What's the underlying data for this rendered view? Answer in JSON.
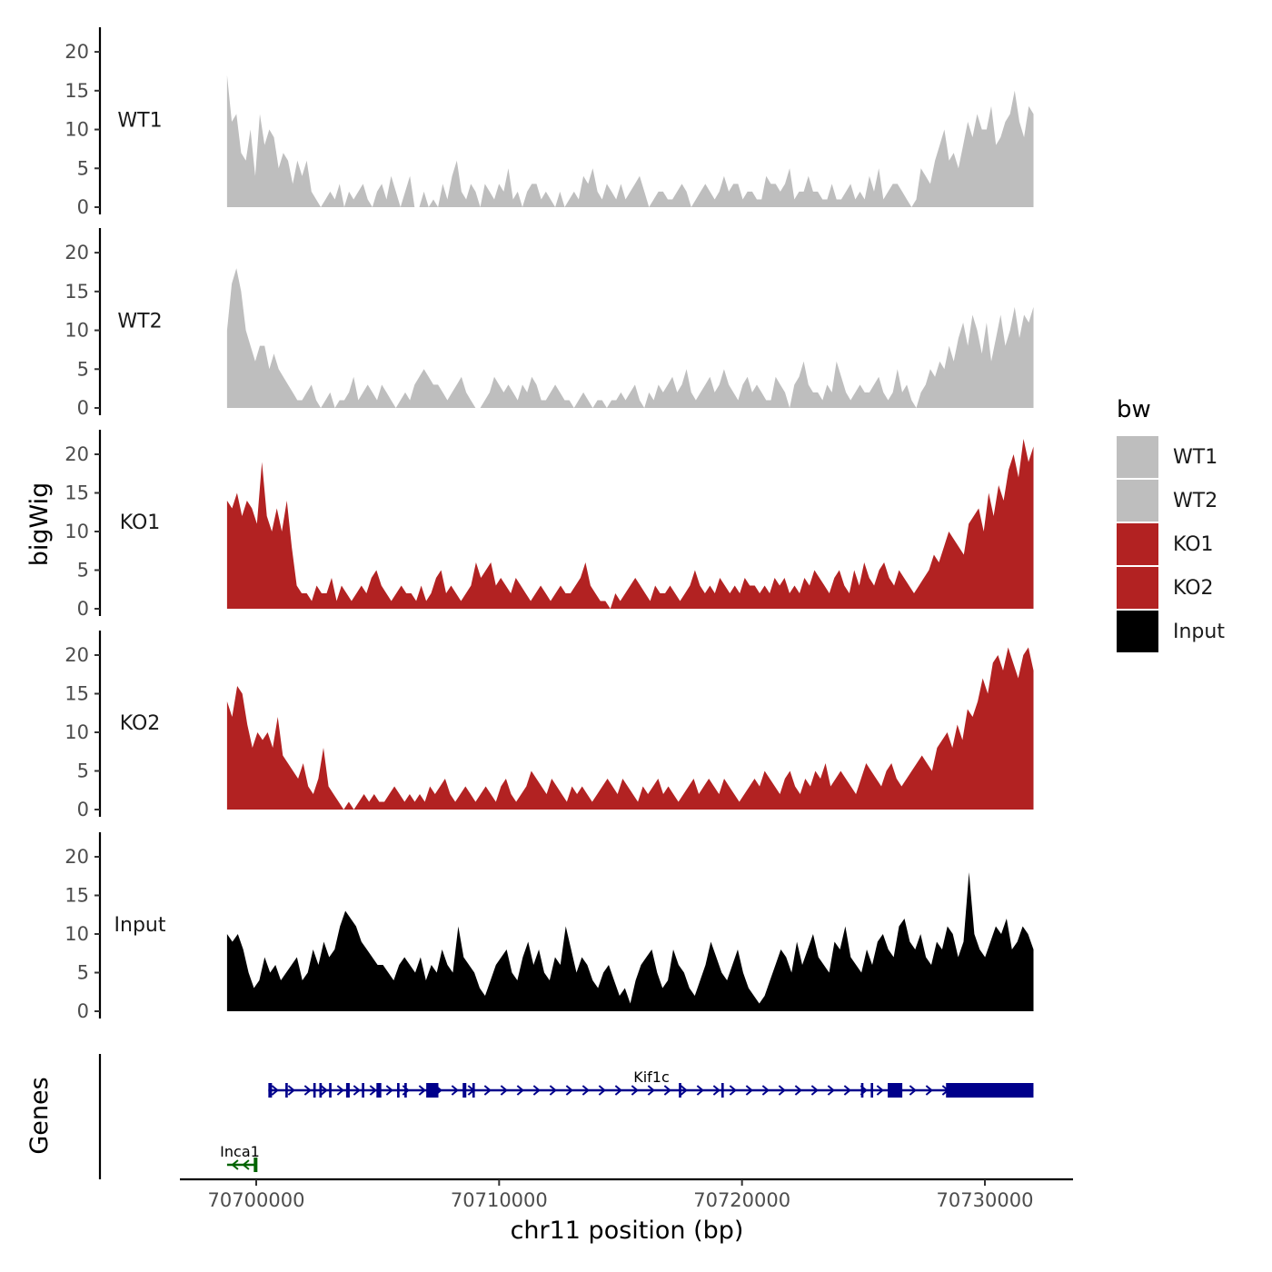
{
  "chart_data": {
    "type": "area",
    "title": "",
    "ylabel": "bigWig",
    "xlabel": "chr11 position (bp)",
    "genes_label": "Genes",
    "ylim": [
      0,
      22
    ],
    "yticks": [
      0,
      5,
      10,
      15,
      20
    ],
    "xlim": [
      70696500,
      70733000
    ],
    "xticks": [
      70700000,
      70710000,
      70720000,
      70730000
    ],
    "xtick_labels": [
      "70700000",
      "70710000",
      "70720000",
      "70730000"
    ],
    "track_x_range": [
      70698800,
      70732000
    ],
    "legend": {
      "title": "bw",
      "position": "right",
      "entries": [
        {
          "label": "WT1",
          "color": "#BEBEBE"
        },
        {
          "label": "WT2",
          "color": "#BEBEBE"
        },
        {
          "label": "KO1",
          "color": "#B22222"
        },
        {
          "label": "KO2",
          "color": "#B22222"
        },
        {
          "label": "Input",
          "color": "#000000"
        }
      ]
    },
    "series": [
      {
        "name": "WT1",
        "color": "#BEBEBE",
        "values": [
          17,
          11,
          12,
          7,
          6,
          10,
          4,
          12,
          8,
          10,
          9,
          5,
          7,
          6,
          3,
          6,
          4,
          6,
          2,
          1,
          0,
          1,
          2,
          1,
          3,
          0,
          2,
          1,
          2,
          3,
          1,
          0,
          2,
          3,
          1,
          4,
          2,
          0,
          2,
          4,
          0,
          0,
          2,
          0,
          1,
          0,
          3,
          1,
          4,
          6,
          2,
          1,
          3,
          2,
          0,
          3,
          2,
          1,
          3,
          2,
          5,
          1,
          2,
          0,
          2,
          3,
          3,
          1,
          2,
          1,
          0,
          2,
          0,
          1,
          2,
          1,
          4,
          3,
          5,
          2,
          1,
          3,
          2,
          1,
          3,
          1,
          2,
          3,
          4,
          2,
          0,
          1,
          2,
          2,
          1,
          1,
          2,
          3,
          2,
          0,
          1,
          2,
          3,
          2,
          1,
          2,
          4,
          2,
          3,
          3,
          1,
          2,
          2,
          1,
          1,
          4,
          3,
          3,
          2,
          3,
          5,
          1,
          2,
          2,
          4,
          2,
          2,
          1,
          1,
          3,
          1,
          1,
          2,
          3,
          1,
          2,
          1,
          4,
          2,
          5,
          1,
          2,
          3,
          3,
          2,
          1,
          0,
          1,
          5,
          4,
          3,
          6,
          8,
          10,
          6,
          7,
          5,
          8,
          11,
          9,
          12,
          10,
          10,
          13,
          8,
          9,
          11,
          12,
          15,
          11,
          9,
          13,
          12
        ]
      },
      {
        "name": "WT2",
        "color": "#BEBEBE",
        "values": [
          10,
          16,
          18,
          15,
          10,
          8,
          6,
          8,
          8,
          5,
          7,
          5,
          4,
          3,
          2,
          1,
          1,
          2,
          3,
          1,
          0,
          1,
          2,
          0,
          1,
          1,
          2,
          4,
          1,
          2,
          3,
          2,
          1,
          3,
          2,
          1,
          0,
          1,
          2,
          1,
          3,
          4,
          5,
          4,
          3,
          3,
          2,
          1,
          2,
          3,
          4,
          2,
          1,
          0,
          0,
          1,
          2,
          4,
          3,
          2,
          3,
          2,
          1,
          3,
          2,
          4,
          3,
          1,
          1,
          2,
          3,
          2,
          1,
          1,
          0,
          1,
          2,
          1,
          0,
          1,
          1,
          0,
          1,
          1,
          2,
          1,
          2,
          3,
          1,
          0,
          2,
          1,
          3,
          2,
          3,
          4,
          2,
          3,
          5,
          2,
          1,
          2,
          3,
          4,
          2,
          3,
          5,
          3,
          2,
          1,
          3,
          4,
          2,
          3,
          2,
          1,
          1,
          4,
          3,
          2,
          0,
          3,
          4,
          6,
          3,
          2,
          2,
          1,
          3,
          2,
          6,
          4,
          2,
          1,
          2,
          3,
          2,
          2,
          3,
          4,
          2,
          1,
          2,
          5,
          2,
          3,
          1,
          0,
          2,
          3,
          5,
          4,
          6,
          5,
          8,
          6,
          9,
          11,
          8,
          12,
          10,
          7,
          11,
          6,
          9,
          12,
          8,
          10,
          13,
          9,
          12,
          11,
          13
        ]
      },
      {
        "name": "KO1",
        "color": "#B22222",
        "values": [
          14,
          13,
          15,
          12,
          14,
          13,
          11,
          19,
          12,
          10,
          13,
          10,
          14,
          8,
          3,
          2,
          2,
          1,
          3,
          2,
          2,
          4,
          1,
          3,
          2,
          1,
          2,
          3,
          2,
          4,
          5,
          3,
          2,
          1,
          2,
          3,
          2,
          2,
          1,
          3,
          1,
          2,
          4,
          5,
          2,
          3,
          2,
          1,
          2,
          3,
          6,
          4,
          5,
          6,
          3,
          4,
          3,
          2,
          4,
          3,
          2,
          1,
          2,
          3,
          2,
          1,
          2,
          3,
          2,
          2,
          3,
          4,
          6,
          3,
          2,
          1,
          1,
          0,
          2,
          1,
          2,
          3,
          4,
          3,
          2,
          1,
          3,
          2,
          2,
          3,
          2,
          1,
          2,
          3,
          5,
          3,
          2,
          3,
          2,
          4,
          3,
          2,
          3,
          2,
          4,
          3,
          3,
          2,
          3,
          2,
          4,
          3,
          4,
          2,
          3,
          2,
          4,
          3,
          5,
          4,
          3,
          2,
          4,
          5,
          3,
          2,
          5,
          3,
          6,
          4,
          3,
          5,
          6,
          4,
          3,
          5,
          4,
          3,
          2,
          3,
          4,
          5,
          7,
          6,
          8,
          10,
          9,
          8,
          7,
          11,
          12,
          13,
          10,
          15,
          12,
          16,
          14,
          18,
          20,
          17,
          22,
          19,
          21
        ]
      },
      {
        "name": "KO2",
        "color": "#B22222",
        "values": [
          14,
          12,
          16,
          15,
          11,
          8,
          10,
          9,
          10,
          8,
          12,
          7,
          6,
          5,
          4,
          6,
          3,
          2,
          4,
          8,
          3,
          2,
          1,
          0,
          1,
          0,
          1,
          2,
          1,
          2,
          1,
          1,
          2,
          3,
          2,
          1,
          2,
          1,
          2,
          1,
          3,
          2,
          3,
          4,
          2,
          1,
          2,
          3,
          2,
          1,
          2,
          3,
          2,
          1,
          3,
          4,
          2,
          1,
          2,
          3,
          5,
          4,
          3,
          2,
          4,
          3,
          2,
          1,
          3,
          2,
          3,
          2,
          1,
          2,
          3,
          4,
          3,
          2,
          4,
          3,
          2,
          1,
          3,
          2,
          3,
          4,
          2,
          3,
          2,
          1,
          2,
          3,
          4,
          2,
          3,
          4,
          3,
          2,
          4,
          3,
          2,
          1,
          2,
          3,
          4,
          3,
          5,
          4,
          3,
          2,
          4,
          5,
          3,
          2,
          4,
          3,
          5,
          4,
          6,
          3,
          4,
          5,
          4,
          3,
          2,
          4,
          6,
          5,
          4,
          3,
          5,
          6,
          4,
          3,
          4,
          5,
          6,
          7,
          6,
          5,
          8,
          9,
          10,
          8,
          11,
          9,
          13,
          12,
          14,
          17,
          15,
          19,
          20,
          18,
          21,
          19,
          17,
          20,
          21,
          18
        ]
      },
      {
        "name": "Input",
        "color": "#000000",
        "values": [
          10,
          9,
          10,
          8,
          5,
          3,
          4,
          7,
          5,
          6,
          4,
          5,
          6,
          7,
          4,
          5,
          8,
          6,
          9,
          7,
          8,
          11,
          13,
          12,
          11,
          9,
          8,
          7,
          6,
          6,
          5,
          4,
          6,
          7,
          6,
          5,
          7,
          4,
          6,
          5,
          8,
          6,
          5,
          11,
          7,
          6,
          5,
          3,
          2,
          4,
          6,
          7,
          8,
          5,
          4,
          7,
          9,
          6,
          8,
          5,
          4,
          7,
          6,
          11,
          8,
          5,
          7,
          6,
          4,
          3,
          5,
          6,
          4,
          2,
          3,
          1,
          4,
          6,
          7,
          8,
          5,
          3,
          4,
          8,
          6,
          5,
          3,
          2,
          4,
          6,
          9,
          7,
          5,
          4,
          6,
          8,
          5,
          3,
          2,
          1,
          2,
          4,
          6,
          8,
          7,
          5,
          9,
          6,
          8,
          10,
          7,
          6,
          5,
          9,
          8,
          11,
          7,
          6,
          5,
          8,
          6,
          9,
          10,
          8,
          7,
          11,
          12,
          9,
          8,
          10,
          7,
          6,
          9,
          8,
          11,
          10,
          7,
          9,
          18,
          10,
          8,
          7,
          9,
          11,
          10,
          12,
          8,
          9,
          11,
          10,
          8
        ]
      }
    ],
    "genes": [
      {
        "name": "Kif1c",
        "strand": "+",
        "start": 70700500,
        "end": 70732000,
        "color": "#00008B",
        "exons": [
          [
            70700500,
            70700650
          ],
          [
            70701200,
            70701300
          ],
          [
            70702350,
            70702450
          ],
          [
            70702600,
            70702700
          ],
          [
            70703000,
            70703100
          ],
          [
            70703700,
            70703850
          ],
          [
            70704350,
            70704450
          ],
          [
            70704950,
            70705150
          ],
          [
            70705800,
            70705900
          ],
          [
            70706100,
            70706200
          ],
          [
            70707000,
            70707500
          ],
          [
            70708500,
            70708650
          ],
          [
            70708900,
            70709000
          ],
          [
            70717400,
            70717500
          ],
          [
            70719150,
            70719250
          ],
          [
            70724900,
            70725000
          ],
          [
            70725300,
            70725400
          ],
          [
            70726000,
            70726600
          ],
          [
            70728400,
            70732000
          ]
        ]
      },
      {
        "name": "Inca1",
        "strand": "-",
        "start": 70698800,
        "end": 70700000,
        "color": "#006400",
        "exons": [
          [
            70699900,
            70700050
          ]
        ]
      }
    ]
  }
}
